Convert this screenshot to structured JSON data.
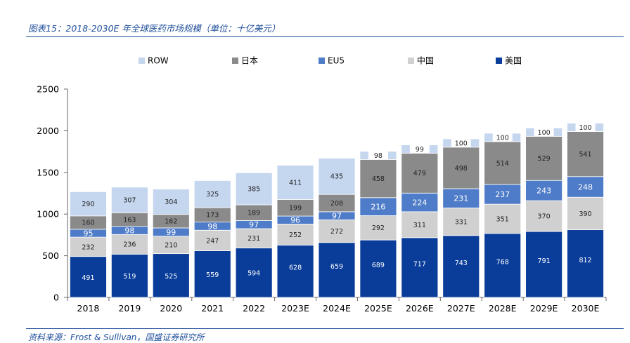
{
  "header": {
    "title": "图表15：2018-2030E 年全球医药市场规模（单位：十亿美元）"
  },
  "footer": {
    "source": "资料来源：Frost & Sullivan，国盛证券研究所"
  },
  "colors": {
    "美国": "#0a3d9a",
    "中国": "#d0d0d0",
    "EU5": "#4f7cc8",
    "日本": "#8a8a8a",
    "ROW": "#c5d6ef",
    "axis": "#666666",
    "rule": "#1f4e9c"
  },
  "chart_data": {
    "type": "bar",
    "stacked": true,
    "title": "",
    "xlabel": "",
    "ylabel": "",
    "ylim": [
      0,
      2500
    ],
    "yticks": [
      0,
      500,
      1000,
      1500,
      2000,
      2500
    ],
    "grid": false,
    "legend_position": "top",
    "legend_order": [
      "ROW",
      "日本",
      "EU5",
      "中国",
      "美国"
    ],
    "categories": [
      "2018",
      "2019",
      "2020",
      "2021",
      "2022",
      "2023E",
      "2024E",
      "2025E",
      "2026E",
      "2027E",
      "2028E",
      "2029E",
      "2030E"
    ],
    "series": [
      {
        "name": "美国",
        "values": [
          491,
          519,
          525,
          559,
          594,
          628,
          659,
          689,
          717,
          743,
          768,
          791,
          812
        ]
      },
      {
        "name": "中国",
        "values": [
          232,
          236,
          210,
          247,
          231,
          252,
          272,
          292,
          311,
          331,
          351,
          370,
          390
        ]
      },
      {
        "name": "EU5",
        "values": [
          95,
          98,
          99,
          98,
          97,
          96,
          97,
          216,
          224,
          231,
          237,
          243,
          248
        ]
      },
      {
        "name": "日本",
        "values": [
          160,
          163,
          162,
          173,
          189,
          199,
          208,
          458,
          479,
          498,
          514,
          529,
          541
        ]
      },
      {
        "name": "ROW",
        "values": [
          290,
          307,
          304,
          325,
          385,
          411,
          435,
          98,
          99,
          100,
          100,
          100,
          100
        ]
      }
    ]
  }
}
